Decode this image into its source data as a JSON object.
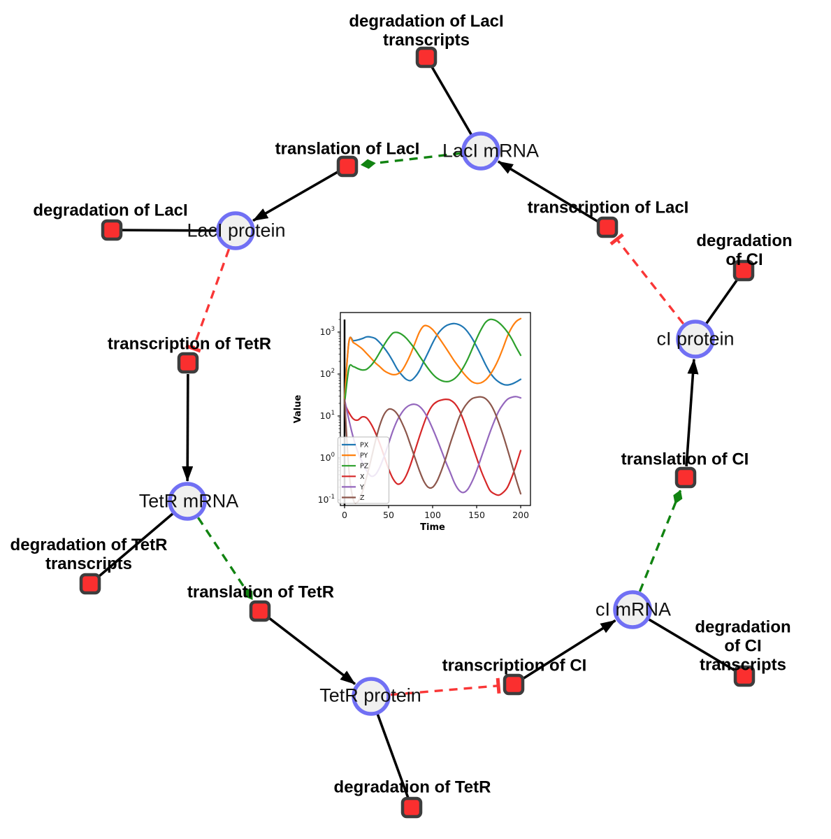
{
  "diagram": {
    "nodes": [
      {
        "id": "laci_mrna",
        "kind": "species",
        "label": "LacI mRNA"
      },
      {
        "id": "laci_protein",
        "kind": "species",
        "label": "LacI protein"
      },
      {
        "id": "tetr_mrna",
        "kind": "species",
        "label": "TetR mRNA"
      },
      {
        "id": "tetr_protein",
        "kind": "species",
        "label": "TetR protein"
      },
      {
        "id": "ci_mrna",
        "kind": "species",
        "label": "cI mRNA"
      },
      {
        "id": "ci_protein",
        "kind": "species",
        "label": "cI protein"
      },
      {
        "id": "deg_laci_tx",
        "kind": "reaction",
        "label": "degradation of LacI\ntranscripts"
      },
      {
        "id": "transl_laci",
        "kind": "reaction",
        "label": "translation of LacI"
      },
      {
        "id": "deg_laci",
        "kind": "reaction",
        "label": "degradation of LacI"
      },
      {
        "id": "tx_laci",
        "kind": "reaction",
        "label": "transcription of LacI"
      },
      {
        "id": "deg_ci",
        "kind": "reaction",
        "label": "degradation of CI"
      },
      {
        "id": "tx_tetr",
        "kind": "reaction",
        "label": "transcription of TetR"
      },
      {
        "id": "deg_tetr_tx",
        "kind": "reaction",
        "label": "degradation of TetR\ntranscripts"
      },
      {
        "id": "transl_tetr",
        "kind": "reaction",
        "label": "translation of TetR"
      },
      {
        "id": "deg_tetr",
        "kind": "reaction",
        "label": "degradation of TetR"
      },
      {
        "id": "tx_ci",
        "kind": "reaction",
        "label": "transcription of CI"
      },
      {
        "id": "deg_ci_tx",
        "kind": "reaction",
        "label": "degradation of CI\ntranscripts"
      },
      {
        "id": "transl_ci",
        "kind": "reaction",
        "label": "translation of CI"
      }
    ],
    "edges": [
      {
        "from": "laci_mrna",
        "to": "deg_laci_tx",
        "type": "plain"
      },
      {
        "from": "laci_mrna",
        "to": "transl_laci",
        "type": "activation"
      },
      {
        "from": "transl_laci",
        "to": "laci_protein",
        "type": "arrow"
      },
      {
        "from": "laci_protein",
        "to": "deg_laci",
        "type": "plain"
      },
      {
        "from": "laci_protein",
        "to": "tx_tetr",
        "type": "inhibition"
      },
      {
        "from": "tx_tetr",
        "to": "tetr_mrna",
        "type": "arrow"
      },
      {
        "from": "tetr_mrna",
        "to": "deg_tetr_tx",
        "type": "plain"
      },
      {
        "from": "tetr_mrna",
        "to": "transl_tetr",
        "type": "activation"
      },
      {
        "from": "transl_tetr",
        "to": "tetr_protein",
        "type": "arrow"
      },
      {
        "from": "tetr_protein",
        "to": "deg_tetr",
        "type": "plain"
      },
      {
        "from": "tetr_protein",
        "to": "tx_ci",
        "type": "inhibition"
      },
      {
        "from": "tx_ci",
        "to": "ci_mrna",
        "type": "arrow"
      },
      {
        "from": "ci_mrna",
        "to": "deg_ci_tx",
        "type": "plain"
      },
      {
        "from": "ci_mrna",
        "to": "transl_ci",
        "type": "activation"
      },
      {
        "from": "transl_ci",
        "to": "ci_protein",
        "type": "arrow"
      },
      {
        "from": "ci_protein",
        "to": "deg_ci",
        "type": "plain"
      },
      {
        "from": "ci_protein",
        "to": "tx_laci",
        "type": "inhibition"
      },
      {
        "from": "tx_laci",
        "to": "laci_mrna",
        "type": "arrow"
      }
    ],
    "colors": {
      "species_fill": "#f0f0f0",
      "species_border": "#7170f4",
      "reaction_fill": "#fa2f2f",
      "reaction_border": "#3d3d3d",
      "edge_black": "#000000",
      "activation_green": "#118311",
      "inhibition_red": "#f93636"
    }
  },
  "chart_data": {
    "type": "line",
    "title": "",
    "xlabel": "Time",
    "ylabel": "Value",
    "xlim": [
      0,
      200
    ],
    "ylim_log10": [
      -1,
      3.45
    ],
    "yscale": "log",
    "grid": false,
    "legend_position": "lower left",
    "xticks": [
      0,
      50,
      100,
      150,
      200
    ],
    "ytick_exponents": [
      -1,
      0,
      1,
      2,
      3
    ],
    "initial_spike_vline_x": 0,
    "x": [
      0,
      5,
      10,
      15,
      20,
      25,
      30,
      35,
      40,
      45,
      50,
      55,
      60,
      65,
      70,
      75,
      80,
      85,
      90,
      95,
      100,
      105,
      110,
      115,
      120,
      125,
      130,
      135,
      140,
      145,
      150,
      155,
      160,
      165,
      170,
      175,
      180,
      185,
      190,
      195,
      200
    ],
    "series": [
      {
        "name": "PX",
        "color": "#1f77b4",
        "values": [
          30,
          600,
          620,
          650,
          700,
          770,
          760,
          700,
          560,
          420,
          300,
          200,
          130,
          95,
          75,
          70,
          85,
          120,
          200,
          330,
          550,
          850,
          1150,
          1400,
          1550,
          1600,
          1500,
          1300,
          1000,
          700,
          450,
          280,
          170,
          110,
          80,
          65,
          57,
          55,
          58,
          65,
          75
        ]
      },
      {
        "name": "PY",
        "color": "#ff7f0e",
        "values": [
          25,
          600,
          560,
          480,
          400,
          310,
          240,
          185,
          150,
          120,
          105,
          97,
          100,
          120,
          180,
          300,
          550,
          1000,
          1400,
          1380,
          1150,
          850,
          600,
          420,
          290,
          200,
          145,
          105,
          80,
          65,
          60,
          62,
          72,
          95,
          140,
          230,
          420,
          800,
          1300,
          1800,
          2100
        ]
      },
      {
        "name": "PZ",
        "color": "#2ca02c",
        "values": [
          20,
          140,
          150,
          135,
          125,
          130,
          160,
          220,
          330,
          500,
          720,
          950,
          980,
          880,
          720,
          540,
          390,
          270,
          190,
          135,
          100,
          80,
          70,
          66,
          68,
          78,
          100,
          145,
          230,
          400,
          700,
          1150,
          1700,
          2000,
          1950,
          1700,
          1350,
          1000,
          680,
          430,
          280
        ]
      },
      {
        "name": "X",
        "color": "#d62728",
        "values": [
          20,
          12,
          8.5,
          8,
          9.5,
          9,
          6.5,
          4,
          2.2,
          1.1,
          0.55,
          0.32,
          0.24,
          0.26,
          0.38,
          0.7,
          1.5,
          3.2,
          6.5,
          12,
          18,
          22,
          24,
          25,
          24,
          20,
          14,
          8,
          4,
          2,
          1,
          0.5,
          0.28,
          0.17,
          0.14,
          0.13,
          0.15,
          0.2,
          0.35,
          0.7,
          1.5
        ]
      },
      {
        "name": "Y",
        "color": "#9467bd",
        "values": [
          25,
          8,
          3,
          1.4,
          0.8,
          0.5,
          0.37,
          0.4,
          0.6,
          1.1,
          2.2,
          4.5,
          8,
          12,
          16,
          18.5,
          19,
          17,
          13,
          8.5,
          5,
          2.8,
          1.5,
          0.8,
          0.45,
          0.25,
          0.17,
          0.15,
          0.18,
          0.28,
          0.5,
          1,
          2,
          4,
          7.5,
          13,
          19,
          25,
          28,
          29,
          27
        ]
      },
      {
        "name": "Z",
        "color": "#8c564b",
        "values": [
          25,
          0.5,
          0.1,
          0.09,
          0.15,
          0.35,
          0.9,
          2.5,
          6,
          11,
          14.5,
          14,
          11,
          7,
          4,
          2,
          1,
          0.5,
          0.28,
          0.2,
          0.2,
          0.28,
          0.5,
          1,
          2.2,
          4.5,
          9,
          15,
          21,
          26,
          28,
          28.5,
          26,
          20,
          13,
          7,
          3.5,
          1.6,
          0.7,
          0.3,
          0.14
        ]
      }
    ]
  }
}
